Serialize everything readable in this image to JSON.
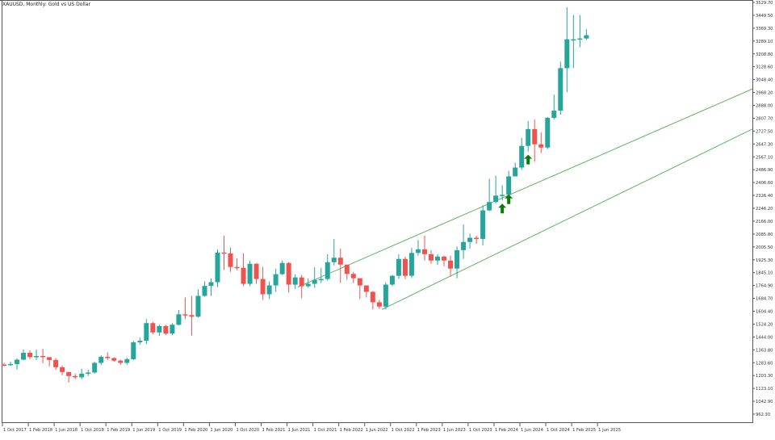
{
  "header": {
    "title": "XAUUSD, Monthly:  Gold vs US Dollar"
  },
  "colors": {
    "bull": "#26a69a",
    "bear": "#ef5350",
    "channel": "#4caf50",
    "arrow": "#0a7a0a",
    "axis": "#555555",
    "text": "#333333",
    "background": "#ffffff"
  },
  "chart_data": {
    "type": "candlestick",
    "title": "XAUUSD, Monthly:  Gold vs US Dollar",
    "xlabel": "",
    "ylabel": "",
    "ylim": [
      962.3,
      3529.7
    ],
    "grid": false,
    "y_ticks": [
      3529.7,
      3449.5,
      3369.3,
      3289.1,
      3208.8,
      3128.6,
      3048.4,
      2968.2,
      2888.0,
      2807.7,
      2727.5,
      2647.3,
      2567.1,
      2486.9,
      2406.6,
      2326.4,
      2246.2,
      2166.0,
      2085.8,
      2005.5,
      1925.3,
      1845.1,
      1764.9,
      1684.7,
      1604.4,
      1524.2,
      1444.0,
      1363.8,
      1283.6,
      1203.3,
      1123.1,
      1042.9,
      962.3
    ],
    "x_ticks": [
      "1 Oct 2017",
      "1 Feb 2018",
      "1 Jun 2018",
      "1 Oct 2018",
      "1 Feb 2019",
      "1 Jun 2019",
      "1 Oct 2019",
      "1 Feb 2020",
      "1 Jun 2020",
      "1 Oct 2020",
      "1 Feb 2021",
      "1 Jun 2021",
      "1 Oct 2021",
      "1 Feb 2022",
      "1 Jun 2022",
      "1 Oct 2022",
      "1 Feb 2023",
      "1 Jun 2023",
      "1 Oct 2023",
      "1 Feb 2024",
      "1 Jun 2024",
      "1 Oct 2024",
      "1 Feb 2025",
      "1 Jun 2025"
    ],
    "candles": [
      [
        1272,
        1270,
        1283,
        1260
      ],
      [
        1270,
        1275,
        1290,
        1265
      ],
      [
        1275,
        1302,
        1310,
        1240
      ],
      [
        1302,
        1345,
        1366,
        1298
      ],
      [
        1345,
        1318,
        1360,
        1305
      ],
      [
        1318,
        1325,
        1365,
        1300
      ],
      [
        1325,
        1318,
        1370,
        1280
      ],
      [
        1318,
        1300,
        1310,
        1260
      ],
      [
        1300,
        1255,
        1312,
        1238
      ],
      [
        1255,
        1225,
        1265,
        1205
      ],
      [
        1225,
        1200,
        1215,
        1160
      ],
      [
        1200,
        1192,
        1215,
        1180
      ],
      [
        1192,
        1215,
        1245,
        1180
      ],
      [
        1215,
        1222,
        1240,
        1200
      ],
      [
        1222,
        1282,
        1290,
        1215
      ],
      [
        1282,
        1320,
        1330,
        1268
      ],
      [
        1320,
        1312,
        1348,
        1300
      ],
      [
        1312,
        1296,
        1318,
        1290
      ],
      [
        1296,
        1282,
        1302,
        1270
      ],
      [
        1282,
        1305,
        1315,
        1270
      ],
      [
        1305,
        1410,
        1420,
        1300
      ],
      [
        1410,
        1420,
        1440,
        1395
      ],
      [
        1420,
        1530,
        1555,
        1400
      ],
      [
        1530,
        1472,
        1538,
        1460
      ],
      [
        1472,
        1512,
        1520,
        1450
      ],
      [
        1512,
        1465,
        1520,
        1455
      ],
      [
        1465,
        1520,
        1530,
        1455
      ],
      [
        1520,
        1585,
        1612,
        1515
      ],
      [
        1585,
        1580,
        1690,
        1555
      ],
      [
        1580,
        1570,
        1700,
        1452
      ],
      [
        1570,
        1700,
        1740,
        1565
      ],
      [
        1700,
        1762,
        1790,
        1695
      ],
      [
        1762,
        1785,
        1808,
        1700
      ],
      [
        1785,
        1970,
        1990,
        1755
      ],
      [
        1970,
        1965,
        2075,
        1862
      ],
      [
        1965,
        1880,
        2001,
        1850
      ],
      [
        1880,
        1875,
        1934,
        1860
      ],
      [
        1875,
        1775,
        1966,
        1760
      ],
      [
        1775,
        1900,
        1920,
        1760
      ],
      [
        1900,
        1805,
        1903,
        1775
      ],
      [
        1805,
        1710,
        1880,
        1675
      ],
      [
        1710,
        1765,
        1790,
        1680
      ],
      [
        1765,
        1835,
        1870,
        1725
      ],
      [
        1835,
        1905,
        1920,
        1830
      ],
      [
        1905,
        1770,
        1910,
        1720
      ],
      [
        1770,
        1815,
        1835,
        1743
      ],
      [
        1815,
        1760,
        1830,
        1685
      ],
      [
        1760,
        1775,
        1808,
        1750
      ],
      [
        1775,
        1800,
        1878,
        1750
      ],
      [
        1800,
        1805,
        1875,
        1780
      ],
      [
        1805,
        1910,
        1960,
        1795
      ],
      [
        1910,
        1938,
        2055,
        1890
      ],
      [
        1938,
        1895,
        1995,
        1780
      ],
      [
        1895,
        1837,
        1880,
        1800
      ],
      [
        1837,
        1810,
        1850,
        1780
      ],
      [
        1810,
        1765,
        1810,
        1680
      ],
      [
        1765,
        1725,
        1765,
        1690
      ],
      [
        1725,
        1660,
        1730,
        1615
      ],
      [
        1660,
        1633,
        1675,
        1618
      ],
      [
        1633,
        1770,
        1785,
        1616
      ],
      [
        1770,
        1825,
        1830,
        1760
      ],
      [
        1825,
        1930,
        1960,
        1805
      ],
      [
        1930,
        1825,
        1945,
        1805
      ],
      [
        1825,
        1968,
        2000,
        1810
      ],
      [
        1968,
        1990,
        2048,
        1950
      ],
      [
        1990,
        1960,
        2075,
        1920
      ],
      [
        1960,
        1920,
        1985,
        1900
      ],
      [
        1920,
        1945,
        1960,
        1893
      ],
      [
        1945,
        1920,
        1950,
        1885
      ],
      [
        1920,
        1870,
        1950,
        1820
      ],
      [
        1870,
        1985,
        2008,
        1810
      ],
      [
        1985,
        2036,
        2145,
        1930
      ],
      [
        2036,
        2062,
        2088,
        1995
      ],
      [
        2062,
        2055,
        2075,
        2025
      ],
      [
        2055,
        2233,
        2265,
        2015
      ],
      [
        2233,
        2285,
        2430,
        2228
      ],
      [
        2285,
        2325,
        2450,
        2277
      ],
      [
        2325,
        2330,
        2390,
        2295
      ],
      [
        2330,
        2445,
        2480,
        2353
      ],
      [
        2445,
        2500,
        2530,
        2470
      ],
      [
        2500,
        2635,
        2685,
        2485
      ],
      [
        2635,
        2740,
        2790,
        2600
      ],
      [
        2740,
        2645,
        2800,
        2535
      ],
      [
        2645,
        2625,
        2720,
        2590
      ],
      [
        2625,
        2810,
        2815,
        2615
      ],
      [
        2810,
        2855,
        2955,
        2800
      ],
      [
        2855,
        3120,
        3160,
        2830
      ],
      [
        3120,
        3300,
        3500,
        2970
      ],
      [
        3300,
        3300,
        3452,
        3120
      ],
      [
        3300,
        3305,
        3450,
        3250
      ],
      [
        3305,
        3325,
        3362,
        3295
      ]
    ],
    "channel_lines": [
      {
        "from": [
          "Jun 2021",
          1755
        ],
        "to": [
          "right edge",
          2990
        ]
      },
      {
        "from": [
          "Oct 2022",
          1615
        ],
        "to": [
          "right edge",
          2740
        ]
      }
    ],
    "signals": [
      {
        "type": "buy-arrow",
        "candle_index": 77
      },
      {
        "type": "buy-arrow",
        "candle_index": 78
      },
      {
        "type": "buy-arrow",
        "candle_index": 81
      }
    ]
  }
}
